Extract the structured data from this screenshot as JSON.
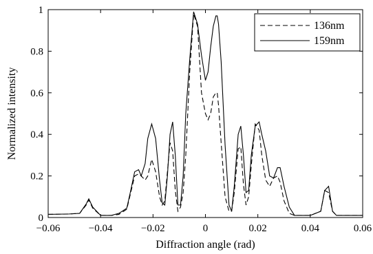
{
  "chart_data": {
    "type": "line",
    "xlabel": "Diffraction angle (rad)",
    "ylabel": "Normalized intensity",
    "xlim": [
      -0.06,
      0.06
    ],
    "ylim": [
      0,
      1
    ],
    "x_ticks": [
      "−0.06",
      "−0.04",
      "−0.02",
      "0",
      "0.02",
      "0.04",
      "0.06"
    ],
    "x_tick_values": [
      -0.06,
      -0.04,
      -0.02,
      0,
      0.02,
      0.04,
      0.06
    ],
    "y_ticks": [
      "0",
      "0.2",
      "0.4",
      "0.6",
      "0.8",
      "1"
    ],
    "y_tick_values": [
      0,
      0.2,
      0.4,
      0.6,
      0.8,
      1
    ],
    "grid": false,
    "legend_position": "top-right",
    "series": [
      {
        "name": "136nm",
        "style": "dashed",
        "color": "#000000",
        "x": [
          -0.06,
          -0.052,
          -0.048,
          -0.0455,
          -0.0445,
          -0.043,
          -0.04,
          -0.036,
          -0.033,
          -0.03,
          -0.0285,
          -0.027,
          -0.0255,
          -0.0245,
          -0.023,
          -0.022,
          -0.0205,
          -0.019,
          -0.0175,
          -0.0165,
          -0.0155,
          -0.0145,
          -0.0135,
          -0.0125,
          -0.0115,
          -0.0105,
          -0.0095,
          -0.0085,
          -0.0075,
          -0.006,
          -0.0045,
          -0.003,
          -0.0015,
          0,
          0.001,
          0.002,
          0.003,
          0.004,
          0.0045,
          0.005,
          0.006,
          0.0075,
          0.009,
          0.01,
          0.011,
          0.0125,
          0.0135,
          0.0145,
          0.0155,
          0.0165,
          0.0175,
          0.019,
          0.0205,
          0.0215,
          0.023,
          0.0245,
          0.026,
          0.0275,
          0.0285,
          0.03,
          0.032,
          0.034,
          0.036,
          0.04,
          0.044,
          0.0455,
          0.047,
          0.0485,
          0.05,
          0.055,
          0.06
        ],
        "y": [
          0.015,
          0.017,
          0.02,
          0.06,
          0.085,
          0.045,
          0.01,
          0.01,
          0.015,
          0.04,
          0.12,
          0.2,
          0.21,
          0.2,
          0.18,
          0.2,
          0.28,
          0.22,
          0.1,
          0.06,
          0.08,
          0.22,
          0.36,
          0.32,
          0.13,
          0.03,
          0.05,
          0.12,
          0.3,
          0.7,
          0.98,
          0.92,
          0.6,
          0.5,
          0.47,
          0.5,
          0.58,
          0.6,
          0.6,
          0.54,
          0.36,
          0.1,
          0.03,
          0.03,
          0.12,
          0.33,
          0.34,
          0.16,
          0.06,
          0.1,
          0.25,
          0.45,
          0.42,
          0.3,
          0.18,
          0.15,
          0.19,
          0.2,
          0.17,
          0.08,
          0.02,
          0.01,
          0.01,
          0.01,
          0.03,
          0.13,
          0.12,
          0.03,
          0.01,
          0.01,
          0.01
        ]
      },
      {
        "name": "159nm",
        "style": "solid",
        "color": "#000000",
        "x": [
          -0.06,
          -0.052,
          -0.048,
          -0.0455,
          -0.0445,
          -0.043,
          -0.04,
          -0.036,
          -0.033,
          -0.03,
          -0.0285,
          -0.027,
          -0.0255,
          -0.0245,
          -0.023,
          -0.022,
          -0.0205,
          -0.019,
          -0.0175,
          -0.0165,
          -0.0155,
          -0.0145,
          -0.0135,
          -0.0125,
          -0.0115,
          -0.0105,
          -0.0095,
          -0.0085,
          -0.0075,
          -0.006,
          -0.0045,
          -0.003,
          -0.0015,
          0,
          0.001,
          0.002,
          0.003,
          0.004,
          0.0045,
          0.005,
          0.006,
          0.0075,
          0.009,
          0.01,
          0.011,
          0.0125,
          0.0135,
          0.0145,
          0.0155,
          0.0165,
          0.0175,
          0.019,
          0.0205,
          0.0215,
          0.023,
          0.0245,
          0.026,
          0.0275,
          0.0285,
          0.03,
          0.032,
          0.034,
          0.036,
          0.04,
          0.044,
          0.0455,
          0.047,
          0.0485,
          0.05,
          0.055,
          0.06
        ],
        "y": [
          0.015,
          0.017,
          0.02,
          0.065,
          0.09,
          0.05,
          0.01,
          0.01,
          0.02,
          0.045,
          0.13,
          0.22,
          0.23,
          0.2,
          0.26,
          0.38,
          0.45,
          0.38,
          0.18,
          0.07,
          0.06,
          0.2,
          0.4,
          0.46,
          0.3,
          0.06,
          0.06,
          0.2,
          0.5,
          0.76,
          0.99,
          0.93,
          0.78,
          0.66,
          0.7,
          0.82,
          0.92,
          0.97,
          0.97,
          0.93,
          0.75,
          0.35,
          0.06,
          0.03,
          0.15,
          0.4,
          0.44,
          0.3,
          0.12,
          0.13,
          0.3,
          0.44,
          0.46,
          0.4,
          0.32,
          0.2,
          0.19,
          0.24,
          0.24,
          0.15,
          0.05,
          0.01,
          0.01,
          0.01,
          0.03,
          0.13,
          0.15,
          0.03,
          0.01,
          0.01,
          0.01
        ]
      }
    ]
  }
}
